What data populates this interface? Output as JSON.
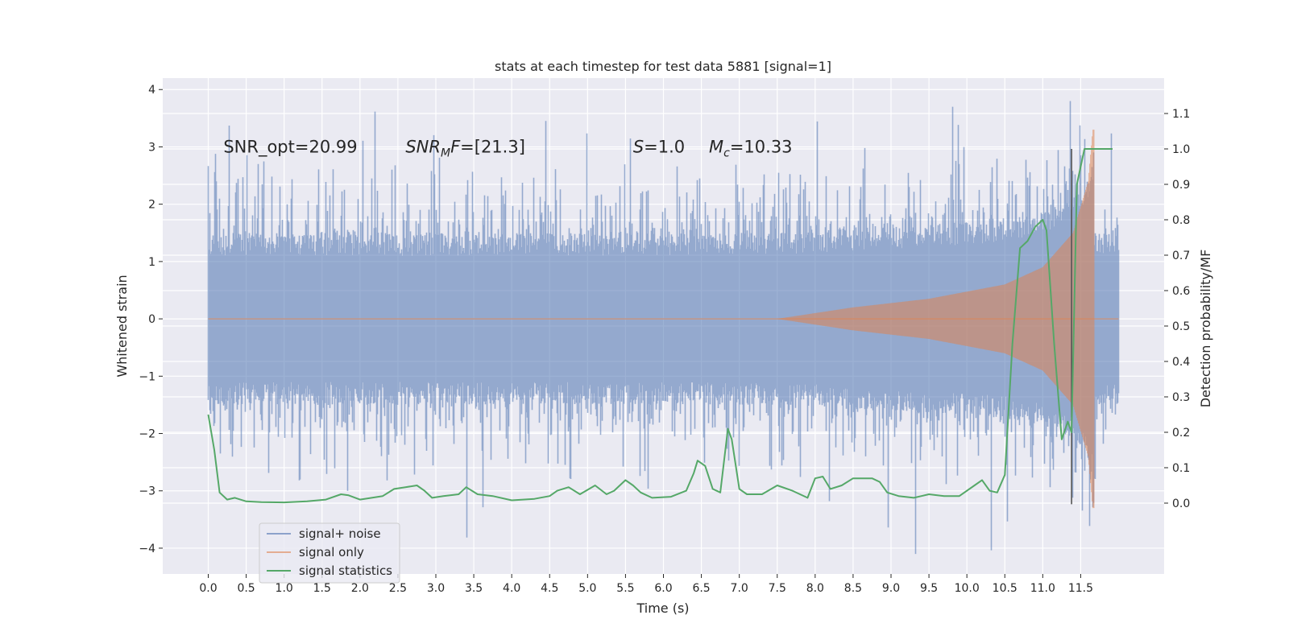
{
  "chart_data": {
    "type": "line",
    "title": "stats at each timestep for test data 5881 [signal=1]",
    "xlabel": "Time (s)",
    "ylabel_left": "Whitened strain",
    "ylabel_right": "Detection probability/MF",
    "xlim": [
      -0.6,
      12.6
    ],
    "ylim_left": [
      -4.45,
      4.2
    ],
    "ylim_right": [
      -0.2,
      1.2
    ],
    "x_ticks": [
      0.0,
      0.5,
      1.0,
      1.5,
      2.0,
      2.5,
      3.0,
      3.5,
      4.0,
      4.5,
      5.0,
      5.5,
      6.0,
      6.5,
      7.0,
      7.5,
      8.0,
      8.5,
      9.0,
      9.5,
      10.0,
      10.5,
      11.0,
      11.5
    ],
    "x_tick_labels": [
      "0.0",
      "0.5",
      "1.0",
      "1.5",
      "2.0",
      "2.5",
      "3.0",
      "3.5",
      "4.0",
      "4.5",
      "5.0",
      "5.5",
      "6.0",
      "6.5",
      "7.0",
      "7.5",
      "8.0",
      "8.5",
      "9.0",
      "9.5",
      "10.0",
      "10.5",
      "11.0",
      "11.5"
    ],
    "y_left_ticks": [
      -4,
      -3,
      -2,
      -1,
      0,
      1,
      2,
      3,
      4
    ],
    "y_left_tick_labels": [
      "−4",
      "−3",
      "−2",
      "−1",
      "0",
      "1",
      "2",
      "3",
      "4"
    ],
    "y_right_ticks": [
      0.0,
      0.1,
      0.2,
      0.3,
      0.4,
      0.5,
      0.6,
      0.7,
      0.8,
      0.9,
      1.0,
      1.1
    ],
    "y_right_tick_labels": [
      "0.0",
      "0.1",
      "0.2",
      "0.3",
      "0.4",
      "0.5",
      "0.6",
      "0.7",
      "0.8",
      "0.9",
      "1.0",
      "1.1"
    ],
    "grid": true,
    "legend_location": "lower-left",
    "series": [
      {
        "name": "signal+ noise",
        "axis": "left",
        "color": "#4c72b0",
        "x_range": [
          0.0,
          12.0
        ],
        "noise_std": 0.95,
        "peak_min": -4.1,
        "peak_max": 3.8
      },
      {
        "name": "signal only",
        "axis": "left",
        "color": "#dd8452",
        "chirp_start": 7.5,
        "merger_time": 11.68,
        "envelope": [
          {
            "t": 7.5,
            "a": 0.0
          },
          {
            "t": 8.5,
            "a": 0.2
          },
          {
            "t": 9.5,
            "a": 0.35
          },
          {
            "t": 10.5,
            "a": 0.6
          },
          {
            "t": 11.0,
            "a": 0.9
          },
          {
            "t": 11.4,
            "a": 1.5
          },
          {
            "t": 11.6,
            "a": 2.4
          },
          {
            "t": 11.66,
            "a": 3.3
          }
        ]
      },
      {
        "name": "signal statistics",
        "axis": "right",
        "color": "#55a868",
        "x": [
          0.0,
          0.08,
          0.15,
          0.25,
          0.35,
          0.5,
          0.7,
          1.0,
          1.3,
          1.55,
          1.75,
          1.85,
          2.0,
          2.3,
          2.45,
          2.6,
          2.75,
          2.85,
          2.95,
          3.1,
          3.3,
          3.4,
          3.55,
          3.75,
          4.0,
          4.3,
          4.5,
          4.6,
          4.75,
          4.9,
          5.1,
          5.25,
          5.35,
          5.5,
          5.6,
          5.7,
          5.85,
          6.1,
          6.3,
          6.4,
          6.45,
          6.55,
          6.65,
          6.75,
          6.85,
          6.9,
          7.0,
          7.1,
          7.3,
          7.5,
          7.7,
          7.9,
          8.0,
          8.1,
          8.2,
          8.35,
          8.5,
          8.75,
          8.85,
          8.95,
          9.1,
          9.3,
          9.5,
          9.7,
          9.9,
          10.1,
          10.2,
          10.3,
          10.4,
          10.5,
          10.6,
          10.7,
          10.8,
          10.9,
          11.0,
          11.05,
          11.15,
          11.25,
          11.33,
          11.38,
          11.45,
          11.55,
          11.7,
          11.8,
          11.92
        ],
        "y": [
          0.25,
          0.15,
          0.03,
          0.01,
          0.015,
          0.005,
          0.003,
          0.002,
          0.005,
          0.01,
          0.025,
          0.022,
          0.01,
          0.02,
          0.04,
          0.045,
          0.05,
          0.035,
          0.015,
          0.02,
          0.025,
          0.045,
          0.025,
          0.02,
          0.008,
          0.012,
          0.02,
          0.035,
          0.045,
          0.025,
          0.05,
          0.025,
          0.035,
          0.065,
          0.05,
          0.03,
          0.015,
          0.018,
          0.035,
          0.085,
          0.12,
          0.105,
          0.04,
          0.03,
          0.21,
          0.18,
          0.04,
          0.025,
          0.025,
          0.05,
          0.035,
          0.015,
          0.07,
          0.075,
          0.04,
          0.05,
          0.07,
          0.07,
          0.06,
          0.03,
          0.02,
          0.015,
          0.025,
          0.02,
          0.02,
          0.05,
          0.065,
          0.035,
          0.03,
          0.08,
          0.45,
          0.72,
          0.74,
          0.78,
          0.8,
          0.77,
          0.45,
          0.18,
          0.23,
          0.2,
          0.9,
          1.0,
          1.0,
          1.0,
          1.0
        ]
      }
    ],
    "vertical_marker": {
      "x": 11.38,
      "y_range": [
        -0.003,
        1.0
      ],
      "color": "#555555"
    },
    "annotations": [
      {
        "id": "snr_opt",
        "x": 0.2,
        "y": 3.0,
        "text": "SNR_opt=20.99"
      },
      {
        "id": "snr_mf",
        "x": 2.6,
        "y": 3.0,
        "text_main": "SNR",
        "text_sub": "M",
        "text_rest": "F=[21.3]"
      },
      {
        "id": "s",
        "x": 5.6,
        "y": 3.0,
        "text_italic": "S",
        "text_rest": "=1.0"
      },
      {
        "id": "mc",
        "x": 6.6,
        "y": 3.0,
        "text_italic": "M",
        "text_sub": "c",
        "text_rest": "=10.33"
      }
    ],
    "legend": [
      {
        "label": "signal+ noise",
        "color": "#4c72b0"
      },
      {
        "label": "signal only",
        "color": "#dd8452"
      },
      {
        "label": "signal statistics",
        "color": "#55a868"
      }
    ]
  }
}
